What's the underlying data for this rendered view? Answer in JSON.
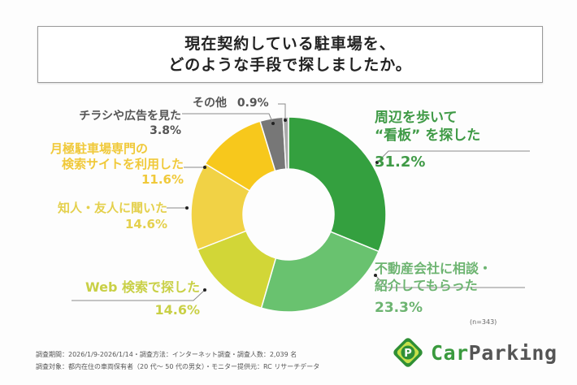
{
  "header": {
    "title_line1": "現在契約している駐車場を、",
    "title_line2": "どのような手段で探しましたか。"
  },
  "chart_data": {
    "type": "pie",
    "variant": "donut",
    "title": "現在契約している駐車場を、どのような手段で探しましたか。",
    "sample_size": "(n=343)",
    "start": "top",
    "direction": "clockwise",
    "slices": [
      {
        "label": "周辺を歩いて“看板”を探した",
        "label_lines": [
          "周辺を歩いて",
          "“看板” を探した"
        ],
        "value": 31.2,
        "value_label": "31.2%",
        "color": "#34a03f",
        "text_color": "#3f9a46"
      },
      {
        "label": "不動産会社に相談・紹介してもらった",
        "label_lines": [
          "不動産会社に相談・",
          "紹介してもらった"
        ],
        "value": 23.3,
        "value_label": "23.3%",
        "color": "#69c26f",
        "text_color": "#6db471"
      },
      {
        "label": "Web 検索で探した",
        "label_lines": [
          "Web 検索で探した"
        ],
        "value": 14.6,
        "value_label": "14.6%",
        "color": "#d2d637",
        "text_color": "#c9d046"
      },
      {
        "label": "知人・友人に聞いた",
        "label_lines": [
          "知人・友人に聞いた"
        ],
        "value": 14.6,
        "value_label": "14.6%",
        "color": "#f1d245",
        "text_color": "#e4d04c"
      },
      {
        "label": "月極駐車場専門の検索サイトを利用した",
        "label_lines": [
          "月極駐車場専門の",
          "検索サイトを利用した"
        ],
        "value": 11.6,
        "value_label": "11.6%",
        "color": "#f7c81c",
        "text_color": "#f0c93a"
      },
      {
        "label": "チラシや広告を見た",
        "label_lines": [
          "チラシや広告を見た"
        ],
        "value": 3.8,
        "value_label": "3.8%",
        "color": "#777777",
        "text_color": "#555555"
      },
      {
        "label": "その他",
        "label_lines": [
          "その他"
        ],
        "value": 0.9,
        "value_label": "0.9%",
        "color": "#a9a9a9",
        "text_color": "#555555"
      }
    ]
  },
  "footer": {
    "note1": "調査期間：2026/1/9-2026/1/14・調査方法：インターネット調査・調査人数：2,039 名",
    "note2": "調査対象：都内在住の車両保有者（20 代～ 50 代の男女）・モニター提供元：RC リサーチデータ"
  },
  "brand": {
    "logo_letter": "P",
    "name_part1": "Car",
    "name_part2": "Parking",
    "color_primary": "#3a9a3e",
    "color_secondary": "#555555",
    "color_accent": "#c6e04a"
  }
}
